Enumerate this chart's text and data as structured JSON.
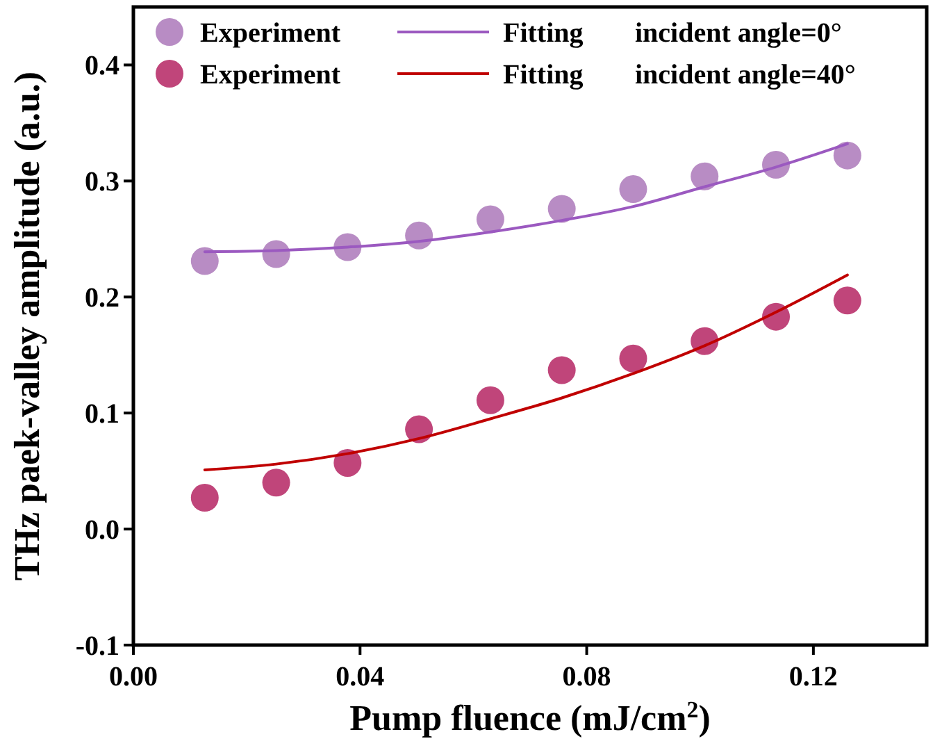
{
  "chart_data": {
    "type": "scatter",
    "xlabel": "Pump fluence (mJ/cm$^{2}$)",
    "ylabel": "THz paek-valley amplitude (a.u.)",
    "x": [
      0.0126,
      0.0252,
      0.0378,
      0.0504,
      0.063,
      0.0756,
      0.0882,
      0.1008,
      0.1134,
      0.126
    ],
    "series": [
      {
        "name": "Experiment",
        "color": "#b88cc4",
        "values": [
          0.231,
          0.237,
          0.243,
          0.253,
          0.267,
          0.276,
          0.293,
          0.304,
          0.314,
          0.322
        ]
      },
      {
        "name": "Fitting",
        "type": "line",
        "marker": "none",
        "color": "#9b59c0",
        "values": [
          0.239,
          0.24,
          0.243,
          0.248,
          0.256,
          0.266,
          0.278,
          0.295,
          0.312,
          0.332
        ]
      },
      {
        "name": "Experiment",
        "color": "#c0457a",
        "values": [
          0.027,
          0.04,
          0.057,
          0.086,
          0.111,
          0.137,
          0.147,
          0.162,
          0.183,
          0.197
        ]
      },
      {
        "name": "Fitting",
        "type": "line",
        "marker": "none",
        "color": "#c00000",
        "values": [
          0.051,
          0.056,
          0.065,
          0.078,
          0.095,
          0.113,
          0.134,
          0.158,
          0.187,
          0.219
        ]
      }
    ],
    "annotations": [
      "incident angle=0°",
      "incident angle=40°"
    ],
    "xlim": [
      0,
      0.14
    ],
    "xticks": [
      {
        "value": 0,
        "label": "0.00"
      },
      0.04,
      0.08,
      0.12
    ],
    "ylim": [
      -0.1,
      0.45
    ],
    "yticks": [
      -0.1,
      {
        "value": 0,
        "label": "0.0"
      },
      0.1,
      0.2,
      0.3,
      0.4
    ],
    "legend": "top",
    "marker": "circle",
    "line_style": "solid",
    "grid": false
  }
}
